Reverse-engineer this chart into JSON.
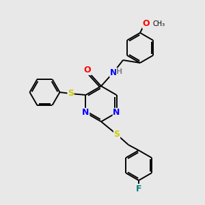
{
  "background_color": "#e8e8e8",
  "bond_color": "#000000",
  "atom_colors": {
    "N": "#0000ff",
    "O": "#ff0000",
    "S": "#cccc00",
    "F": "#008080",
    "H": "#888888",
    "C": "#000000"
  },
  "figsize": [
    3.0,
    3.0
  ],
  "dpi": 100,
  "ring_r": 20,
  "lw": 1.4
}
